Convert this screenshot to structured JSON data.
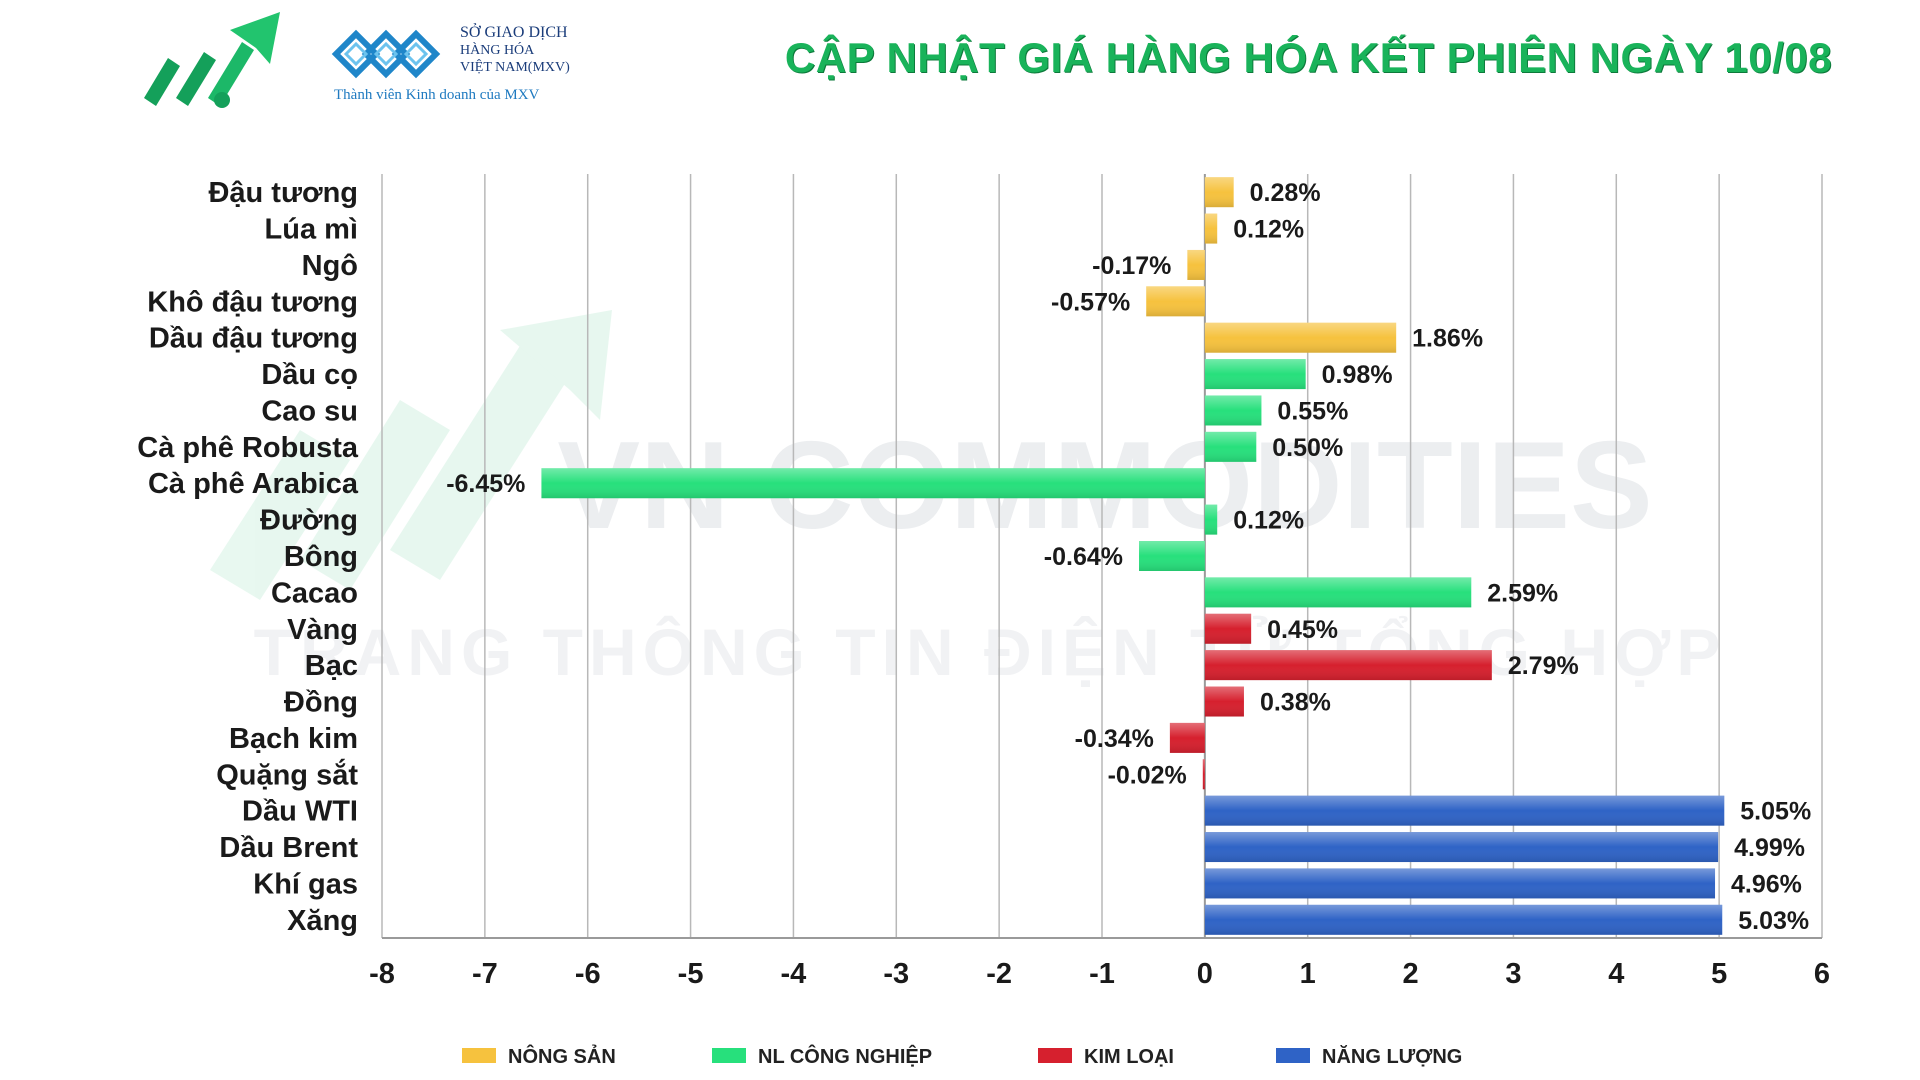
{
  "header": {
    "title": "CẬP NHẬT GIÁ HÀNG HÓA KẾT PHIÊN NGÀY 10/08",
    "mxv_line1": "SỞ GIAO DỊCH",
    "mxv_line2": "HÀNG HÓA",
    "mxv_line3": "VIỆT NAM(MXV)",
    "mxv_member": "Thành viên Kinh doanh của MXV"
  },
  "watermark": {
    "main": "VN COMMODITIES",
    "sub": "TRANG THÔNG TIN ĐIỆN TỬ TỔNG HỢP"
  },
  "colors": {
    "nong_san": "#f6c23e",
    "nl_cong_nghiep": "#27e07c",
    "kim_loai": "#d6202e",
    "nang_luong": "#2f63c6"
  },
  "chart_data": {
    "type": "bar",
    "orientation": "horizontal",
    "title": "CẬP NHẬT GIÁ HÀNG HÓA KẾT PHIÊN NGÀY 10/08",
    "xlim": [
      -8,
      6
    ],
    "xticks": [
      -8,
      -7,
      -6,
      -5,
      -4,
      -3,
      -2,
      -1,
      0,
      1,
      2,
      3,
      4,
      5,
      6
    ],
    "grid": true,
    "legend_position": "bottom",
    "groups": [
      {
        "key": "nong_san",
        "name": "NÔNG SẢN",
        "color": "#f6c23e"
      },
      {
        "key": "nl_cong_nghiep",
        "name": "NL CÔNG NGHIỆP",
        "color": "#27e07c"
      },
      {
        "key": "kim_loai",
        "name": "KIM LOẠI",
        "color": "#d6202e"
      },
      {
        "key": "nang_luong",
        "name": "NĂNG LƯỢNG",
        "color": "#2f63c6"
      }
    ],
    "bars": [
      {
        "category": "Đậu tương",
        "value": 0.28,
        "label": "0.28%",
        "group": "nong_san"
      },
      {
        "category": "Lúa mì",
        "value": 0.12,
        "label": "0.12%",
        "group": "nong_san"
      },
      {
        "category": "Ngô",
        "value": -0.17,
        "label": "-0.17%",
        "group": "nong_san"
      },
      {
        "category": "Khô đậu tương",
        "value": -0.57,
        "label": "-0.57%",
        "group": "nong_san"
      },
      {
        "category": "Dầu đậu tương",
        "value": 1.86,
        "label": "1.86%",
        "group": "nong_san"
      },
      {
        "category": "Dầu cọ",
        "value": 0.98,
        "label": "0.98%",
        "group": "nl_cong_nghiep"
      },
      {
        "category": "Cao su",
        "value": 0.55,
        "label": "0.55%",
        "group": "nl_cong_nghiep"
      },
      {
        "category": "Cà phê Robusta",
        "value": 0.5,
        "label": "0.50%",
        "group": "nl_cong_nghiep"
      },
      {
        "category": "Cà phê Arabica",
        "value": -6.45,
        "label": "-6.45%",
        "group": "nl_cong_nghiep"
      },
      {
        "category": "Đường",
        "value": 0.12,
        "label": "0.12%",
        "group": "nl_cong_nghiep"
      },
      {
        "category": "Bông",
        "value": -0.64,
        "label": "-0.64%",
        "group": "nl_cong_nghiep"
      },
      {
        "category": "Cacao",
        "value": 2.59,
        "label": "2.59%",
        "group": "nl_cong_nghiep"
      },
      {
        "category": "Vàng",
        "value": 0.45,
        "label": "0.45%",
        "group": "kim_loai"
      },
      {
        "category": "Bạc",
        "value": 2.79,
        "label": "2.79%",
        "group": "kim_loai"
      },
      {
        "category": "Đồng",
        "value": 0.38,
        "label": "0.38%",
        "group": "kim_loai"
      },
      {
        "category": "Bạch kim",
        "value": -0.34,
        "label": "-0.34%",
        "group": "kim_loai"
      },
      {
        "category": "Quặng sắt",
        "value": -0.02,
        "label": "-0.02%",
        "group": "kim_loai"
      },
      {
        "category": "Dầu WTI",
        "value": 5.05,
        "label": "5.05%",
        "group": "nang_luong"
      },
      {
        "category": "Dầu Brent",
        "value": 4.99,
        "label": "4.99%",
        "group": "nang_luong"
      },
      {
        "category": "Khí gas",
        "value": 4.96,
        "label": "4.96%",
        "group": "nang_luong"
      },
      {
        "category": "Xăng",
        "value": 5.03,
        "label": "5.03%",
        "group": "nang_luong"
      }
    ]
  }
}
